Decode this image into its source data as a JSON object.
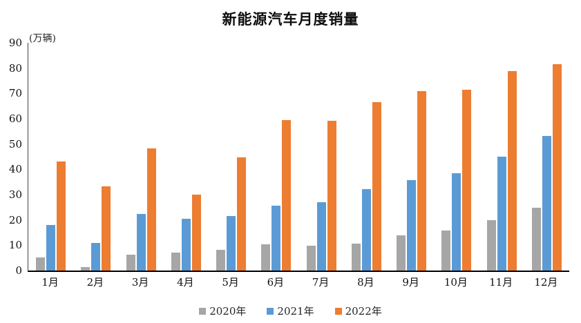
{
  "title": "新能源汽车月度销量",
  "unit_label": "(万辆)",
  "legend": {
    "items": [
      "2020年",
      "2021年",
      "2022年"
    ]
  },
  "colors": {
    "series_2020": "#A6A6A6",
    "series_2021": "#5B9BD5",
    "series_2022": "#ED7D31",
    "axis_line": "#000000",
    "text": "#262626"
  },
  "chart_data": {
    "type": "bar",
    "title": "新能源汽车月度销量",
    "ylabel": "(万辆)",
    "xlabel": "",
    "categories": [
      "1月",
      "2月",
      "3月",
      "4月",
      "5月",
      "6月",
      "7月",
      "8月",
      "9月",
      "10月",
      "11月",
      "12月"
    ],
    "series": [
      {
        "name": "2020年",
        "color": "#A6A6A6",
        "values": [
          5.3,
          1.5,
          6.3,
          7.2,
          8.1,
          10.4,
          9.7,
          10.7,
          14.0,
          15.9,
          20.0,
          24.8
        ]
      },
      {
        "name": "2021年",
        "color": "#5B9BD5",
        "values": [
          17.9,
          10.8,
          22.4,
          20.5,
          21.5,
          25.7,
          27.1,
          32.2,
          35.7,
          38.4,
          45.0,
          53.2
        ]
      },
      {
        "name": "2022年",
        "color": "#ED7D31",
        "values": [
          43.1,
          33.4,
          48.4,
          29.9,
          44.7,
          59.6,
          59.3,
          66.6,
          70.8,
          71.4,
          78.9,
          81.5
        ]
      }
    ],
    "ylim": [
      0,
      90
    ],
    "ytick_step": 10,
    "ytick_labels": [
      "0",
      "10",
      "20",
      "30",
      "40",
      "50",
      "60",
      "70",
      "80",
      "90"
    ],
    "grid": false,
    "legend_position": "bottom"
  }
}
